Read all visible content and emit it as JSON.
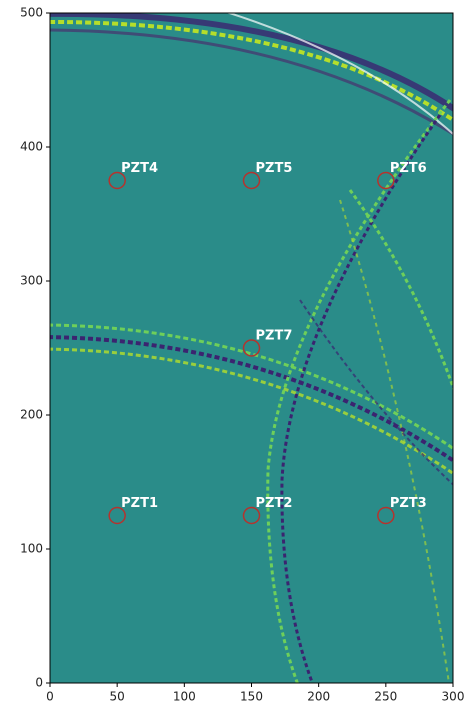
{
  "chart_data": {
    "type": "scatter",
    "x": [
      50,
      150,
      250,
      50,
      150,
      250,
      150
    ],
    "y": [
      125,
      125,
      125,
      375,
      375,
      375,
      250
    ],
    "point_labels": [
      "PZT1",
      "PZT2",
      "PZT3",
      "PZT4",
      "PZT5",
      "PZT6",
      "PZT7"
    ],
    "color": "#b5332e",
    "xlim": [
      0,
      300
    ],
    "xticks": [
      0,
      50,
      100,
      150,
      200,
      250,
      300
    ],
    "ylim": [
      0,
      500
    ],
    "yticks": [
      0,
      100,
      200,
      300,
      400,
      500
    ]
  }
}
